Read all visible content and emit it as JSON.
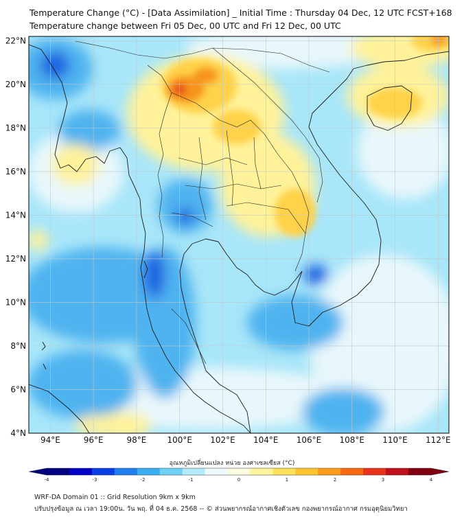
{
  "title": {
    "line1": "Temperature Change (°C) - [Data Assimilation] _ Initial Time : Thursday 04 Dec, 12 UTC FCST+168",
    "line2": "Temperature change between Fri 05 Dec, 00 UTC and Fri 12 Dec, 00 UTC"
  },
  "map": {
    "lon_range": [
      93,
      112.5
    ],
    "lat_range": [
      4,
      22.2
    ],
    "lon_ticks": [
      "94°E",
      "96°E",
      "98°E",
      "100°E",
      "102°E",
      "104°E",
      "106°E",
      "108°E",
      "110°E",
      "112°E"
    ],
    "lat_ticks": [
      "22°N",
      "20°N",
      "18°N",
      "16°N",
      "14°N",
      "12°N",
      "10°N",
      "8°N",
      "6°N",
      "4°N"
    ],
    "grid": true,
    "field_colors": {
      "strong_cool": "#1f63e0",
      "cool": "#4fb3ef",
      "mild_cool": "#a8e6f9",
      "neutral": "#e8f7fb",
      "mild_warm": "#fff29a",
      "warm": "#ffd24a",
      "hot": "#f7941d",
      "very_hot": "#e8501e"
    }
  },
  "colorbar": {
    "title": "อุณหภูมิเปลี่ยนแปลง หน่วย องศาเซลเซียส (°C)",
    "min": -4,
    "max": 4,
    "ticks": [
      "-4",
      "-3",
      "-2",
      "-1",
      "0",
      "1",
      "2",
      "3",
      "4"
    ],
    "colors": [
      "#000080",
      "#0000c8",
      "#0a3fe6",
      "#1f7fee",
      "#3aaef2",
      "#6fd2f7",
      "#b2ebfb",
      "#eef9fc",
      "#fbfbe0",
      "#fff59a",
      "#ffe25a",
      "#ffc42e",
      "#ff9a1a",
      "#f86a12",
      "#e8321a",
      "#c0101a",
      "#800010"
    ]
  },
  "footer": {
    "line1": "WRF-DA Domain 01 :: Grid Resolution 9km x 9km",
    "line2": "ปรับปรุงข้อมูล ณ เวลา 19:00น. วัน พฤ. ที่ 04 ธ.ค. 2568 -- © ส่วนพยากรณ์อากาศเชิงตัวเลข กองพยากรณ์อากาศ กรมอุตุนิยมวิทยา"
  }
}
